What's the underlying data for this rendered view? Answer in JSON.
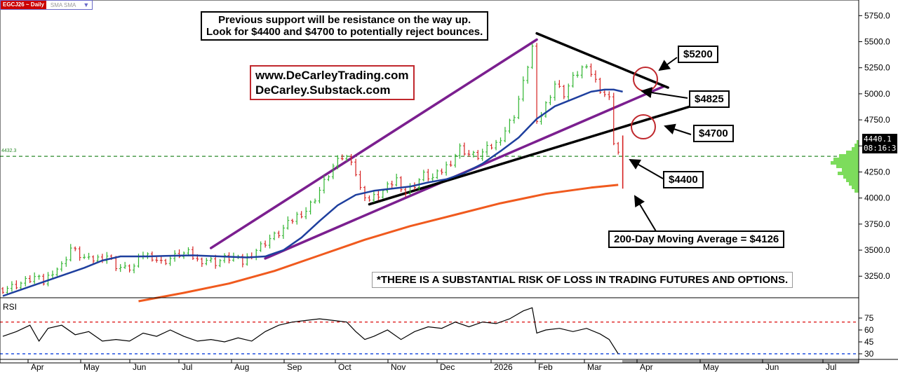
{
  "symbol_bar": {
    "symbol": "EGCJ26 ~ Daily",
    "study": "SMA SMA",
    "dropdown_icon": "triangle-down-icon"
  },
  "annotations": {
    "note_line1": "Previous support will be resistance on the way up.",
    "note_line2": "Look for $4400 and $4700 to potentially reject bounces.",
    "web1": "www.DeCarleyTrading.com",
    "web2": "DeCarley.Substack.com",
    "label_5200": "$5200",
    "label_4825": "$4825",
    "label_4700": "$4700",
    "label_4400": "$4400",
    "label_ma200": "200-Day Moving Average = $4126",
    "risk": "*THERE IS A SUBSTANTIAL RISK OF LOSS IN TRADING FUTURES AND OPTIONS.",
    "rsi_label": "RSI",
    "small_level": "4432.3"
  },
  "price_tag": {
    "value": "4440.1",
    "timer": "08:16:3"
  },
  "colors": {
    "up": "#2fb52f",
    "down": "#d62020",
    "ma_short": "#1e3f9e",
    "ma_200": "#f05a1e",
    "channel": "#7b1f8f",
    "support": "#2a8a2a"
  },
  "chart_data": {
    "type": "ohlc",
    "timeframe": "Daily",
    "ylim": [
      3050,
      5900
    ],
    "yticks": [
      "3250.0",
      "3500.0",
      "3750.0",
      "4000.0",
      "4250.0",
      "4500.0",
      "4750.0",
      "5000.0",
      "5250.0",
      "5500.0",
      "5750.0"
    ],
    "xticks": [
      "Apr",
      "May",
      "Jun",
      "Jul",
      "Aug",
      "Sep",
      "Oct",
      "Nov",
      "Dec",
      "2026",
      "Feb",
      "Mar",
      "Apr",
      "May",
      "Jun",
      "Jul"
    ],
    "close_path": [
      [
        0,
        3130
      ],
      [
        2,
        3150
      ],
      [
        5,
        3200
      ],
      [
        7,
        3240
      ],
      [
        9,
        3190
      ],
      [
        11,
        3300
      ],
      [
        13,
        3350
      ],
      [
        15,
        3520
      ],
      [
        17,
        3450
      ],
      [
        19,
        3400
      ],
      [
        21,
        3420
      ],
      [
        23,
        3450
      ],
      [
        25,
        3350
      ],
      [
        27,
        3320
      ],
      [
        29,
        3340
      ],
      [
        31,
        3460
      ],
      [
        33,
        3440
      ],
      [
        35,
        3380
      ],
      [
        37,
        3420
      ],
      [
        39,
        3460
      ],
      [
        41,
        3470
      ],
      [
        43,
        3400
      ],
      [
        45,
        3410
      ],
      [
        47,
        3380
      ],
      [
        49,
        3420
      ],
      [
        51,
        3430
      ],
      [
        53,
        3380
      ],
      [
        55,
        3470
      ],
      [
        57,
        3540
      ],
      [
        59,
        3610
      ],
      [
        61,
        3660
      ],
      [
        63,
        3750
      ],
      [
        65,
        3830
      ],
      [
        67,
        3880
      ],
      [
        69,
        4000
      ],
      [
        71,
        4150
      ],
      [
        73,
        4300
      ],
      [
        75,
        4390
      ],
      [
        77,
        4380
      ],
      [
        79,
        4080
      ],
      [
        81,
        3980
      ],
      [
        83,
        4030
      ],
      [
        85,
        4100
      ],
      [
        87,
        4180
      ],
      [
        89,
        4050
      ],
      [
        91,
        4130
      ],
      [
        93,
        4220
      ],
      [
        95,
        4190
      ],
      [
        97,
        4260
      ],
      [
        99,
        4350
      ],
      [
        101,
        4480
      ],
      [
        103,
        4420
      ],
      [
        105,
        4400
      ],
      [
        107,
        4470
      ],
      [
        109,
        4520
      ],
      [
        111,
        4650
      ],
      [
        113,
        4800
      ],
      [
        115,
        5100
      ],
      [
        117,
        5450
      ],
      [
        118,
        4700
      ],
      [
        120,
        4900
      ],
      [
        122,
        5100
      ],
      [
        124,
        5000
      ],
      [
        126,
        5150
      ],
      [
        128,
        5250
      ],
      [
        130,
        5200
      ],
      [
        132,
        5050
      ],
      [
        134,
        4950
      ],
      [
        135,
        4550
      ],
      [
        136,
        4440
      ]
    ],
    "series": [
      {
        "name": "SMA",
        "values": [
          [
            0,
            3060
          ],
          [
            6,
            3150
          ],
          [
            12,
            3240
          ],
          [
            18,
            3330
          ],
          [
            22,
            3400
          ],
          [
            26,
            3440
          ],
          [
            32,
            3440
          ],
          [
            36,
            3445
          ],
          [
            42,
            3450
          ],
          [
            48,
            3440
          ],
          [
            54,
            3430
          ],
          [
            58,
            3440
          ],
          [
            62,
            3500
          ],
          [
            66,
            3620
          ],
          [
            70,
            3780
          ],
          [
            74,
            3930
          ],
          [
            78,
            4030
          ],
          [
            82,
            4070
          ],
          [
            86,
            4090
          ],
          [
            90,
            4110
          ],
          [
            94,
            4150
          ],
          [
            98,
            4180
          ],
          [
            102,
            4240
          ],
          [
            106,
            4330
          ],
          [
            110,
            4450
          ],
          [
            114,
            4580
          ],
          [
            118,
            4760
          ],
          [
            122,
            4880
          ],
          [
            126,
            4950
          ],
          [
            130,
            5020
          ],
          [
            133,
            5040
          ],
          [
            135,
            5040
          ],
          [
            137,
            5020
          ]
        ]
      },
      {
        "name": "200-Day Moving Average",
        "values": [
          [
            30,
            3010
          ],
          [
            40,
            3090
          ],
          [
            50,
            3180
          ],
          [
            60,
            3300
          ],
          [
            70,
            3450
          ],
          [
            80,
            3600
          ],
          [
            90,
            3730
          ],
          [
            100,
            3840
          ],
          [
            110,
            3950
          ],
          [
            120,
            4040
          ],
          [
            130,
            4100
          ],
          [
            136,
            4126
          ]
        ]
      }
    ],
    "lines": [
      {
        "from": [
          46,
          3520
        ],
        "to": [
          118,
          5520
        ]
      },
      {
        "from": [
          58,
          3420
        ],
        "to": [
          146,
          5070
        ]
      },
      {
        "from": [
          81,
          3940
        ],
        "to": [
          152,
          4880
        ]
      },
      {
        "from": [
          118,
          5580
        ],
        "to": [
          147,
          5060
        ]
      }
    ],
    "horizontal_levels": [
      4400
    ],
    "rsi": {
      "levels": [
        75,
        60,
        45,
        30
      ],
      "overbought": 70,
      "oversold": 30,
      "values": [
        [
          0,
          52
        ],
        [
          3,
          58
        ],
        [
          6,
          66
        ],
        [
          8,
          46
        ],
        [
          10,
          62
        ],
        [
          13,
          66
        ],
        [
          16,
          54
        ],
        [
          19,
          58
        ],
        [
          22,
          46
        ],
        [
          25,
          48
        ],
        [
          28,
          46
        ],
        [
          31,
          56
        ],
        [
          34,
          52
        ],
        [
          37,
          60
        ],
        [
          40,
          52
        ],
        [
          43,
          46
        ],
        [
          46,
          48
        ],
        [
          49,
          45
        ],
        [
          52,
          50
        ],
        [
          55,
          46
        ],
        [
          58,
          58
        ],
        [
          61,
          66
        ],
        [
          64,
          70
        ],
        [
          67,
          72
        ],
        [
          70,
          74
        ],
        [
          73,
          72
        ],
        [
          76,
          70
        ],
        [
          78,
          58
        ],
        [
          80,
          48
        ],
        [
          82,
          52
        ],
        [
          85,
          60
        ],
        [
          88,
          48
        ],
        [
          91,
          58
        ],
        [
          94,
          64
        ],
        [
          97,
          62
        ],
        [
          100,
          70
        ],
        [
          103,
          64
        ],
        [
          106,
          70
        ],
        [
          109,
          68
        ],
        [
          112,
          74
        ],
        [
          115,
          84
        ],
        [
          117,
          88
        ],
        [
          118,
          56
        ],
        [
          120,
          60
        ],
        [
          123,
          62
        ],
        [
          126,
          58
        ],
        [
          129,
          62
        ],
        [
          132,
          55
        ],
        [
          134,
          48
        ],
        [
          136,
          30
        ]
      ]
    }
  }
}
